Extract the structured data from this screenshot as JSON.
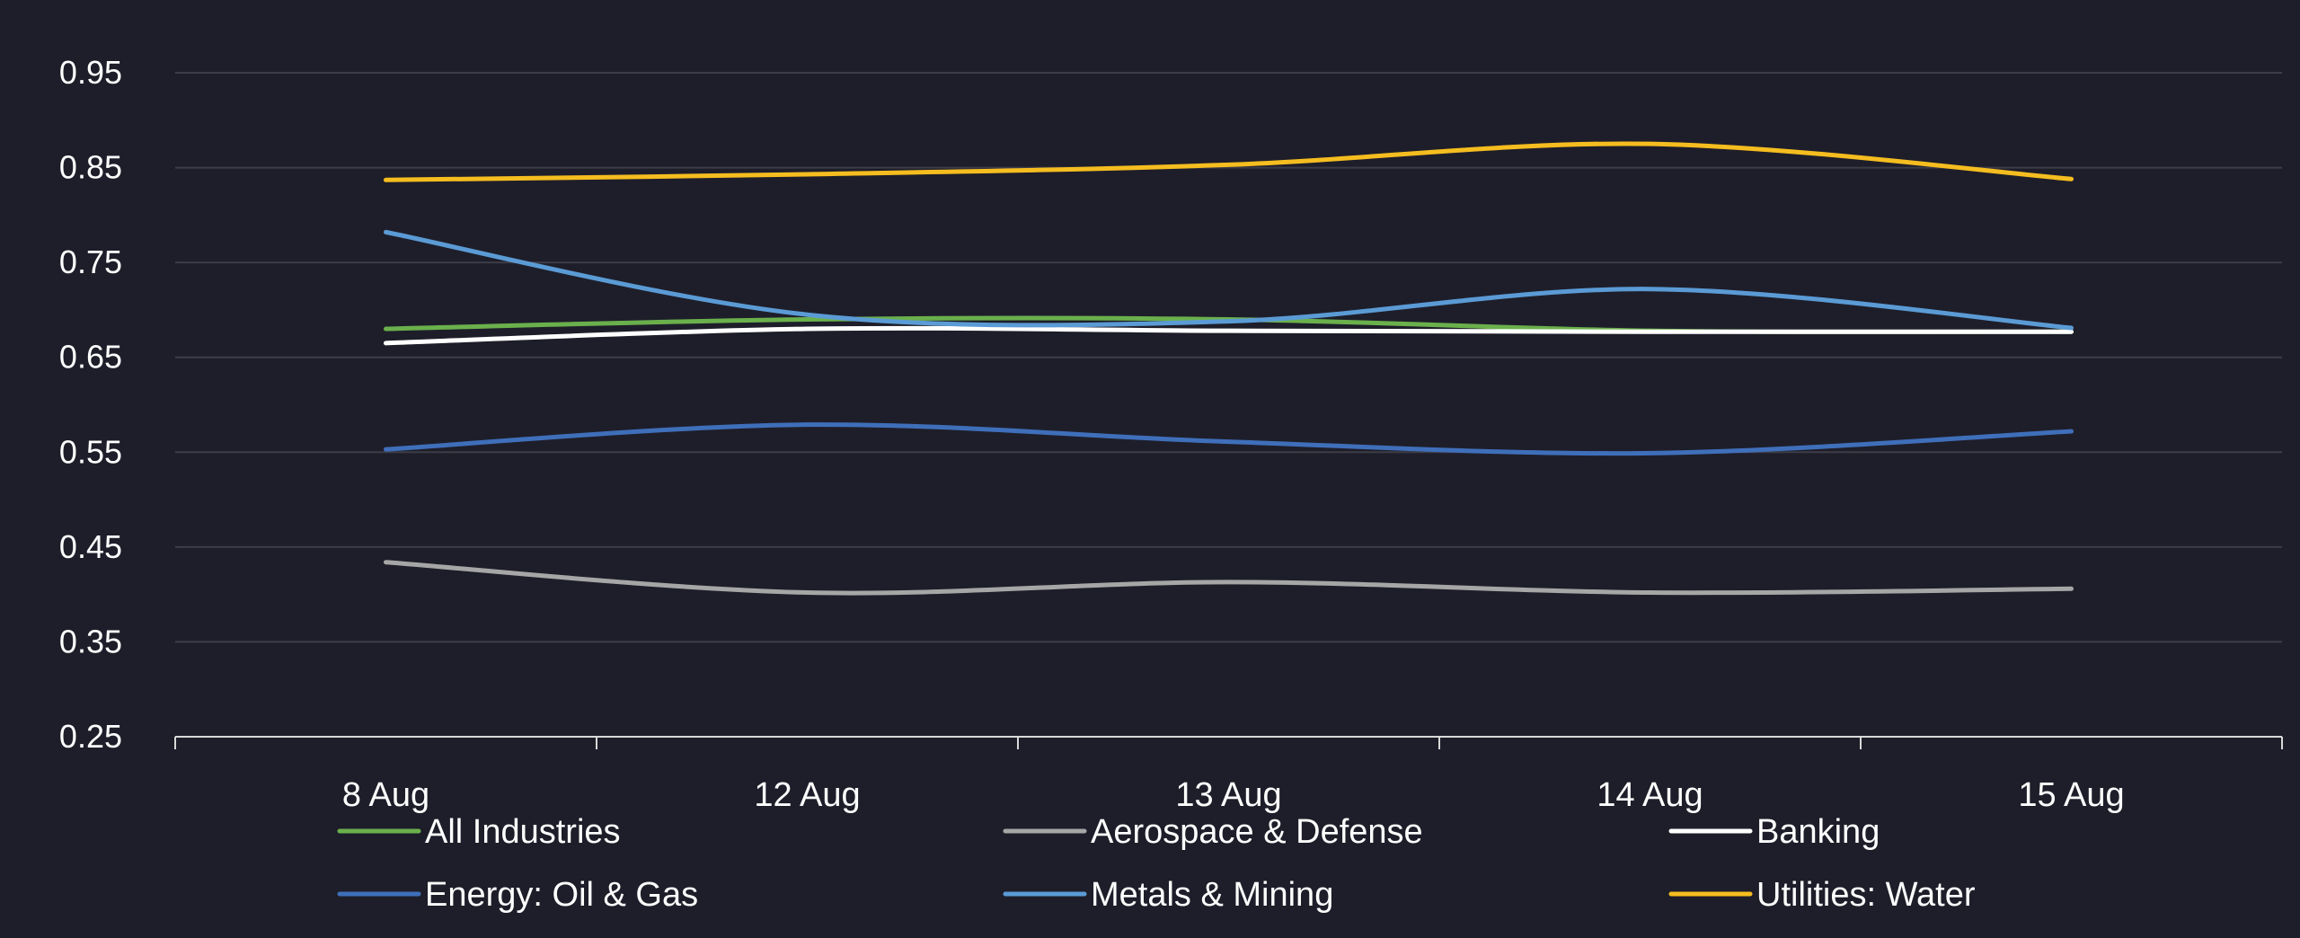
{
  "chart_data": {
    "type": "line",
    "title": "",
    "xlabel": "",
    "ylabel": "",
    "categories": [
      "8 Aug",
      "12 Aug",
      "13 Aug",
      "14 Aug",
      "15 Aug"
    ],
    "y_ticks": [
      "0.25",
      "0.35",
      "0.45",
      "0.55",
      "0.65",
      "0.75",
      "0.85",
      "0.95"
    ],
    "ylim": [
      0.25,
      0.95
    ],
    "grid": true,
    "legend_position": "bottom",
    "series": [
      {
        "name": "All Industries",
        "color": "#6ab04c",
        "values": [
          0.68,
          0.69,
          0.69,
          0.678,
          0.677
        ]
      },
      {
        "name": "Aerospace & Defense",
        "color": "#a6a6a6",
        "values": [
          0.434,
          0.402,
          0.413,
          0.402,
          0.406
        ]
      },
      {
        "name": "Banking",
        "color": "#ffffff",
        "values": [
          0.665,
          0.68,
          0.678,
          0.677,
          0.677
        ]
      },
      {
        "name": "Energy: Oil & Gas",
        "color": "#3f6fba",
        "values": [
          0.553,
          0.579,
          0.561,
          0.549,
          0.572
        ]
      },
      {
        "name": "Metals & Mining",
        "color": "#5b9bd5",
        "values": [
          0.782,
          0.695,
          0.688,
          0.722,
          0.681
        ]
      },
      {
        "name": "Utilities: Water",
        "color": "#f5bd1f",
        "values": [
          0.837,
          0.843,
          0.853,
          0.875,
          0.838
        ]
      }
    ]
  }
}
